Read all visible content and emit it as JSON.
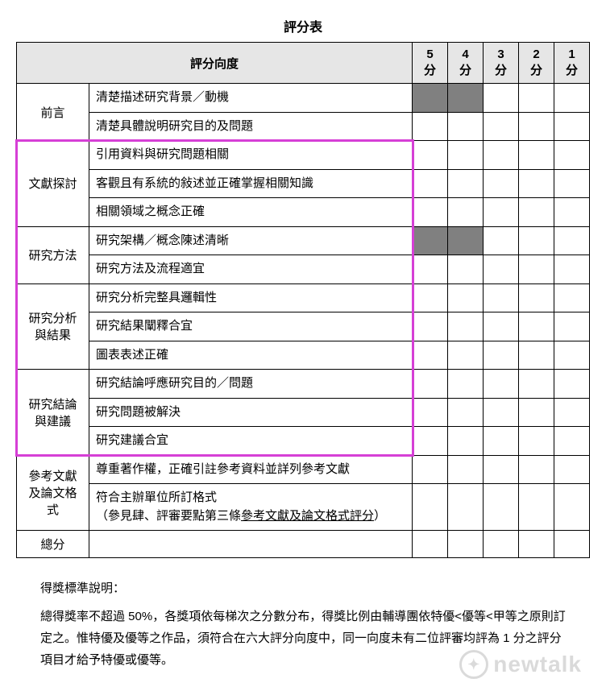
{
  "title": "評分表",
  "header": {
    "dimension": "評分向度",
    "scores": [
      "5 分",
      "4 分",
      "3 分",
      "2 分",
      "1 分"
    ]
  },
  "rows": [
    {
      "cat": "前言",
      "items": [
        {
          "text": "清楚描述研究背景／動機",
          "shaded": [
            0,
            1
          ]
        },
        {
          "text": "清楚具體說明研究目的及問題",
          "shaded": []
        }
      ]
    },
    {
      "cat": "文獻探討",
      "items": [
        {
          "text": "引用資料與研究問題相關",
          "shaded": []
        },
        {
          "text": "客觀且有系統的敍述並正確掌握相關知識",
          "shaded": []
        },
        {
          "text": "相關領域之概念正確",
          "shaded": []
        }
      ]
    },
    {
      "cat": "研究方法",
      "items": [
        {
          "text": "研究架構／概念陳述清晰",
          "shaded": [
            0,
            1
          ]
        },
        {
          "text": "研究方法及流程適宜",
          "shaded": []
        }
      ]
    },
    {
      "cat": "研究分析與結果",
      "items": [
        {
          "text": "研究分析完整具邏輯性",
          "shaded": []
        },
        {
          "text": "研究結果闡釋合宜",
          "shaded": []
        },
        {
          "text": "圖表表述正確",
          "shaded": []
        }
      ]
    },
    {
      "cat": "研究結論與建議",
      "items": [
        {
          "text": "研究結論呼應研究目的／問題",
          "shaded": []
        },
        {
          "text": "研究問題被解決",
          "shaded": []
        },
        {
          "text": "研究建議合宜",
          "shaded": []
        }
      ]
    },
    {
      "cat": "參考文獻及論文格式",
      "items": [
        {
          "text": "尊重著作權，正確引註參考資料並詳列參考文獻",
          "shaded": []
        },
        {
          "text": "符合主辦單位所訂格式\n（參見肆、評審要點第三條",
          "underline_part": "參考文獻及論文格式評分",
          "after": "）",
          "shaded": []
        }
      ]
    },
    {
      "cat": "總分",
      "items": [
        {
          "text": "",
          "shaded": []
        }
      ]
    }
  ],
  "notes": {
    "heading": "得獎標準說明：",
    "body": "總得獎率不超過 50%，各獎項依每梯次之分數分布，得獎比例由輔導團依特優<優等<甲等之原則訂定之。惟特優及優等之作品，須符合在六大評分向度中，同一向度未有二位評審均評為 1 分之評分項目才給予特優或優等。"
  },
  "watermark": "newtalk",
  "highlight": {
    "color": "#d63fd6"
  }
}
